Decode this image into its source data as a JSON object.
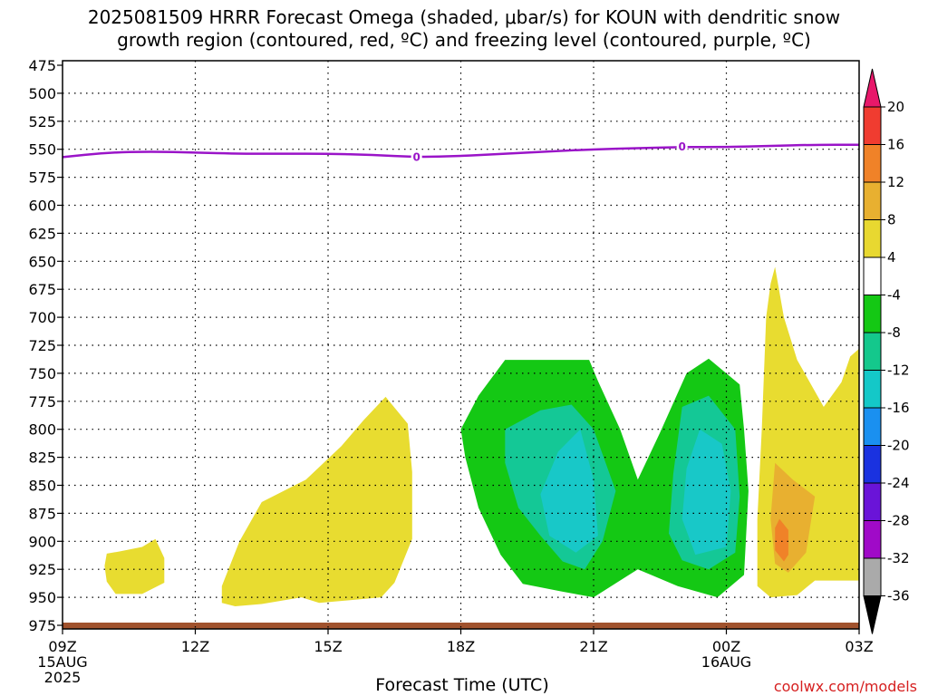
{
  "title_line1": "2025081509 HRRR Forecast Omega (shaded, μbar/s) for KOUN with dendritic snow",
  "title_line2": "growth region (contoured, red, ºC) and freezing level (contoured, purple, ºC)",
  "xaxis_title": "Forecast Time (UTC)",
  "credit": "coolwx.com/models",
  "chart_data": {
    "type": "heatmap",
    "title": "2025081509 HRRR Forecast Omega (shaded, μbar/s) for KOUN with dendritic snow growth region (contoured, red, ºC) and freezing level (contoured, purple, ºC)",
    "xlabel": "Forecast Time (UTC)",
    "ylabel": "",
    "y_axis": {
      "range": [
        475,
        975
      ],
      "inverted": true,
      "ticks": [
        475,
        500,
        525,
        550,
        575,
        600,
        625,
        650,
        675,
        700,
        725,
        750,
        775,
        800,
        825,
        850,
        875,
        900,
        925,
        950,
        975
      ]
    },
    "x_axis": {
      "range_hours": [
        9,
        27
      ],
      "ticks": [
        {
          "hour": 9,
          "label": "09Z",
          "sub": [
            "15AUG",
            "2025"
          ]
        },
        {
          "hour": 12,
          "label": "12Z",
          "sub": []
        },
        {
          "hour": 15,
          "label": "15Z",
          "sub": []
        },
        {
          "hour": 18,
          "label": "18Z",
          "sub": []
        },
        {
          "hour": 21,
          "label": "21Z",
          "sub": []
        },
        {
          "hour": 24,
          "label": "00Z",
          "sub": [
            "16AUG"
          ]
        },
        {
          "hour": 27,
          "label": "03Z",
          "sub": []
        }
      ]
    },
    "grid": true,
    "colorbar": {
      "labels": [
        "20",
        "16",
        "12",
        "8",
        "4",
        "-4",
        "-8",
        "-12",
        "-16",
        "-20",
        "-24",
        "-28",
        "-32",
        "-36"
      ],
      "colors": [
        "#e8186a",
        "#f03c30",
        "#f08228",
        "#e8b030",
        "#e8d830",
        "#ffffff",
        "#14c814",
        "#14c88c",
        "#14c8c8",
        "#1a90f0",
        "#1a32e0",
        "#6a14d8",
        "#a00ac8",
        "#aaaaaa",
        "#000000"
      ]
    },
    "freezing_level": {
      "color": "#9a14c8",
      "label": "0",
      "points": [
        [
          9.0,
          557
        ],
        [
          10.0,
          553
        ],
        [
          11.0,
          552
        ],
        [
          12.0,
          553
        ],
        [
          13.0,
          554
        ],
        [
          14.0,
          554
        ],
        [
          15.0,
          554
        ],
        [
          16.0,
          555
        ],
        [
          17.0,
          557
        ],
        [
          18.0,
          556
        ],
        [
          19.0,
          554
        ],
        [
          20.0,
          552
        ],
        [
          21.0,
          550
        ],
        [
          22.0,
          549
        ],
        [
          23.0,
          548
        ],
        [
          24.0,
          548
        ],
        [
          25.0,
          547
        ],
        [
          26.0,
          546
        ],
        [
          27.0,
          546
        ]
      ]
    },
    "omega_regions": [
      {
        "level": "4 to 8",
        "color": "#e8dc30",
        "points": [
          [
            10.0,
            911
          ],
          [
            10.3,
            909
          ],
          [
            10.8,
            905
          ],
          [
            11.1,
            898
          ],
          [
            11.3,
            915
          ],
          [
            11.3,
            937
          ],
          [
            10.8,
            947
          ],
          [
            10.2,
            947
          ],
          [
            10.0,
            936
          ],
          [
            9.95,
            922
          ]
        ]
      },
      {
        "level": "4 to 8",
        "color": "#e8dc30",
        "points": [
          [
            12.6,
            940
          ],
          [
            13.0,
            900
          ],
          [
            13.5,
            865
          ],
          [
            14.5,
            845
          ],
          [
            15.3,
            815
          ],
          [
            15.8,
            792
          ],
          [
            16.3,
            771
          ],
          [
            16.8,
            795
          ],
          [
            16.9,
            838
          ],
          [
            16.9,
            898
          ],
          [
            16.5,
            937
          ],
          [
            16.2,
            950
          ],
          [
            14.8,
            955
          ],
          [
            14.4,
            950
          ],
          [
            13.5,
            956
          ],
          [
            12.9,
            958
          ],
          [
            12.6,
            955
          ]
        ]
      },
      {
        "level": "-8 to -4",
        "color": "#14c814",
        "points": [
          [
            18.0,
            800
          ],
          [
            18.4,
            770
          ],
          [
            19.0,
            738
          ],
          [
            20.9,
            738
          ],
          [
            21.1,
            757
          ],
          [
            21.6,
            800
          ],
          [
            22.0,
            845
          ],
          [
            22.5,
            803
          ],
          [
            23.1,
            750
          ],
          [
            23.6,
            737
          ],
          [
            24.3,
            760
          ],
          [
            24.4,
            800
          ],
          [
            24.5,
            855
          ],
          [
            24.4,
            930
          ],
          [
            23.8,
            950
          ],
          [
            22.9,
            940
          ],
          [
            22.0,
            925
          ],
          [
            21.4,
            940
          ],
          [
            21.0,
            950
          ],
          [
            20.3,
            945
          ],
          [
            19.4,
            938
          ],
          [
            18.9,
            912
          ],
          [
            18.4,
            870
          ],
          [
            18.1,
            825
          ]
        ]
      },
      {
        "level": "-12 to -8",
        "color": "#14c896",
        "points": [
          [
            19.0,
            800
          ],
          [
            19.8,
            783
          ],
          [
            20.5,
            778
          ],
          [
            21.0,
            800
          ],
          [
            21.5,
            855
          ],
          [
            21.2,
            900
          ],
          [
            20.8,
            925
          ],
          [
            20.3,
            918
          ],
          [
            19.8,
            895
          ],
          [
            19.3,
            870
          ],
          [
            19.0,
            830
          ]
        ]
      },
      {
        "level": "-12 to -8",
        "color": "#14c896",
        "points": [
          [
            23.0,
            780
          ],
          [
            23.6,
            770
          ],
          [
            24.2,
            800
          ],
          [
            24.3,
            860
          ],
          [
            24.2,
            910
          ],
          [
            23.6,
            925
          ],
          [
            23.0,
            917
          ],
          [
            22.7,
            893
          ],
          [
            22.8,
            840
          ]
        ]
      },
      {
        "level": "-16 to -12",
        "color": "#18c8c8",
        "points": [
          [
            20.2,
            820
          ],
          [
            20.7,
            800
          ],
          [
            21.0,
            845
          ],
          [
            21.1,
            895
          ],
          [
            20.6,
            910
          ],
          [
            20.0,
            895
          ],
          [
            19.8,
            858
          ]
        ]
      },
      {
        "level": "-16 to -12",
        "color": "#18c8c8",
        "points": [
          [
            23.4,
            800
          ],
          [
            23.9,
            813
          ],
          [
            24.1,
            855
          ],
          [
            24.0,
            905
          ],
          [
            23.3,
            912
          ],
          [
            23.0,
            880
          ],
          [
            23.1,
            835
          ]
        ]
      },
      {
        "level": "4 to 8",
        "color": "#e8dc30",
        "points": [
          [
            24.9,
            700
          ],
          [
            25.0,
            670
          ],
          [
            25.1,
            655
          ],
          [
            25.3,
            700
          ],
          [
            25.6,
            738
          ],
          [
            26.2,
            780
          ],
          [
            26.6,
            758
          ],
          [
            26.8,
            735
          ],
          [
            27.0,
            728
          ],
          [
            27.0,
            935
          ],
          [
            26.0,
            935
          ],
          [
            25.6,
            948
          ],
          [
            25.0,
            950
          ],
          [
            24.7,
            940
          ],
          [
            24.7,
            880
          ],
          [
            24.8,
            800
          ]
        ]
      },
      {
        "level": "8 to 12",
        "color": "#e8b030",
        "points": [
          [
            25.1,
            830
          ],
          [
            25.5,
            845
          ],
          [
            26.0,
            860
          ],
          [
            25.8,
            910
          ],
          [
            25.4,
            928
          ],
          [
            25.1,
            920
          ],
          [
            25.0,
            880
          ]
        ]
      },
      {
        "level": "12 to 16",
        "color": "#f08228",
        "points": [
          [
            25.2,
            880
          ],
          [
            25.4,
            890
          ],
          [
            25.4,
            912
          ],
          [
            25.3,
            918
          ],
          [
            25.1,
            908
          ],
          [
            25.1,
            888
          ]
        ]
      }
    ]
  }
}
